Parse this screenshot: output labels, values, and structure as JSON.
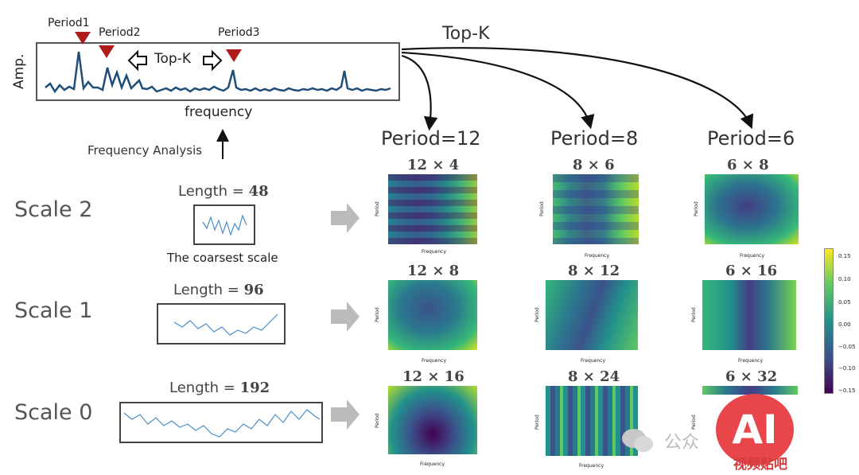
{
  "top_panel": {
    "amp_label": "Amp.",
    "frequency_label": "frequency",
    "period_tags": [
      "Period1",
      "Period2",
      "Period3"
    ],
    "topk_inline": "Top-K",
    "topk_header": "Top-K",
    "freq_analysis": "Frequency Analysis"
  },
  "scales": [
    {
      "label": "Scale 2",
      "length_prefix": "Length = ",
      "length_value": "48",
      "note": "The coarsest scale"
    },
    {
      "label": "Scale 1",
      "length_prefix": "Length = ",
      "length_value": "96"
    },
    {
      "label": "Scale 0",
      "length_prefix": "Length = ",
      "length_value": "192"
    }
  ],
  "periods": [
    {
      "header": "Period=12",
      "dims": [
        "12 × 4",
        "12 × 8",
        "12 × 16"
      ]
    },
    {
      "header": "Period=8",
      "dims": [
        "8 × 6",
        "8 × 12",
        "8 × 24"
      ]
    },
    {
      "header": "Period=6",
      "dims": [
        "6 × 8",
        "6 × 16",
        "6 × 32"
      ]
    }
  ],
  "heatmap_axis": {
    "ylabel": "Period",
    "xlabel": "Frequency"
  },
  "colorbar": {
    "ticks": [
      "0.15",
      "0.10",
      "0.05",
      "0.00",
      "−0.05",
      "−0.10",
      "−0.15"
    ]
  },
  "watermark": {
    "text": "公众",
    "logo": "AI",
    "logo_sub": "视频贴吧"
  },
  "colors": {
    "triangle": "#b01c1c",
    "line": "#1f4e79",
    "series": "#4a8ec7"
  }
}
